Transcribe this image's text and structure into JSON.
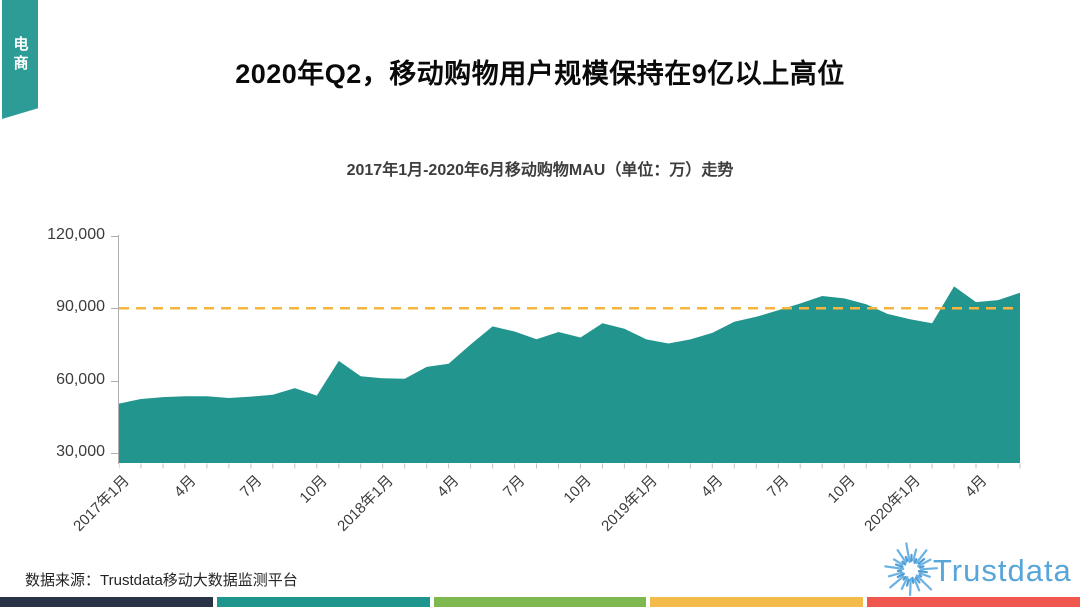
{
  "ribbon": {
    "label": "电商"
  },
  "header": {
    "title": "2020年Q2，移动购物用户规模保持在9亿以上高位"
  },
  "chart_data": {
    "type": "area",
    "title": "2017年1月-2020年6月移动购物MAU（单位：万）走势",
    "unit": "万",
    "x": [
      "2017-01",
      "2017-02",
      "2017-03",
      "2017-04",
      "2017-05",
      "2017-06",
      "2017-07",
      "2017-08",
      "2017-09",
      "2017-10",
      "2017-11",
      "2017-12",
      "2018-01",
      "2018-02",
      "2018-03",
      "2018-04",
      "2018-05",
      "2018-06",
      "2018-07",
      "2018-08",
      "2018-09",
      "2018-10",
      "2018-11",
      "2018-12",
      "2019-01",
      "2019-02",
      "2019-03",
      "2019-04",
      "2019-05",
      "2019-06",
      "2019-07",
      "2019-08",
      "2019-09",
      "2019-10",
      "2019-11",
      "2019-12",
      "2020-01",
      "2020-02",
      "2020-03",
      "2020-04",
      "2020-05",
      "2020-06"
    ],
    "values": [
      50500,
      52400,
      53200,
      53500,
      53500,
      52800,
      53400,
      54200,
      56900,
      53800,
      68200,
      61800,
      61000,
      60800,
      65700,
      67000,
      75000,
      82500,
      80400,
      77200,
      80200,
      77900,
      83800,
      81500,
      77100,
      75400,
      77100,
      79800,
      84400,
      86500,
      89200,
      92000,
      95100,
      94100,
      91700,
      87600,
      85500,
      83800,
      99100,
      92600,
      93400,
      96500
    ],
    "x_tick_labels": [
      "2017年1月",
      "4月",
      "7月",
      "10月",
      "2018年1月",
      "4月",
      "7月",
      "10月",
      "2019年1月",
      "4月",
      "7月",
      "10月",
      "2020年1月",
      "4月"
    ],
    "x_tick_interval": 3,
    "y_ticks": [
      {
        "value": 120000,
        "label": "120,000"
      },
      {
        "value": 90000,
        "label": "90,000"
      },
      {
        "value": 60000,
        "label": "60,000"
      },
      {
        "value": 30000,
        "label": "30,000"
      }
    ],
    "ylim": [
      30000,
      120000
    ],
    "reference_line": {
      "value": 90000,
      "style": "dashed",
      "color": "#F7B53F"
    },
    "area_color": "#21958E",
    "axis_color": "#aeaeae",
    "tick_color": "#c2c2c2",
    "grid": false,
    "legend": false
  },
  "footer": {
    "source": "数据来源：Trustdata移动大数据监测平台",
    "logo_text": "Trustdata",
    "logo_color": "#58A5DA",
    "logo_ray_colors": [
      "#6AB2E4",
      "#4E9BD5"
    ],
    "color_bars": [
      "#2A3447",
      "#1E968E",
      "#7DB94F",
      "#F3BB4A",
      "#EF564D"
    ]
  }
}
